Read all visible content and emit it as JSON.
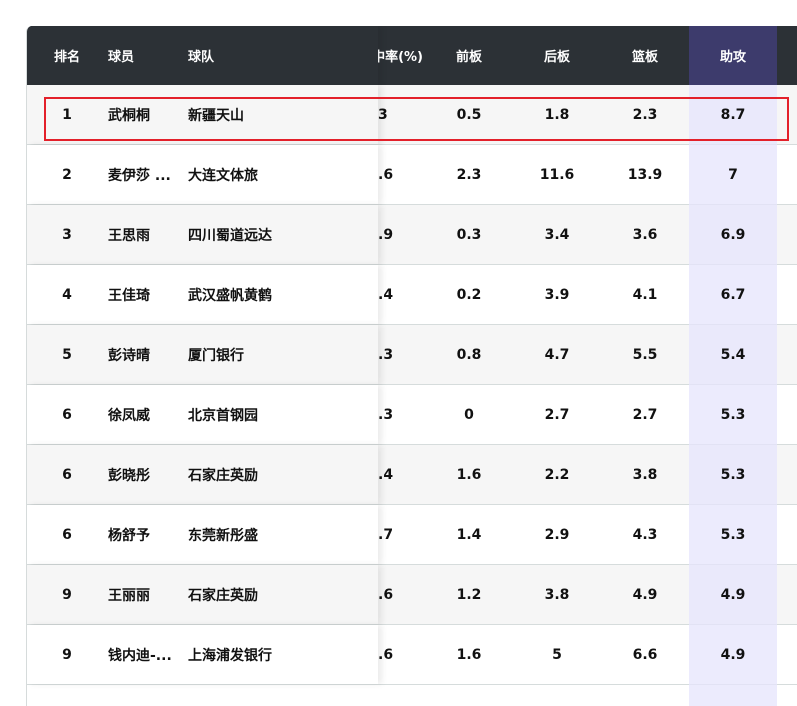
{
  "columns": {
    "rank": "排名",
    "player": "球员",
    "team": "球队",
    "partial": "中率(%)",
    "oreb": "前板",
    "dreb": "后板",
    "reb": "篮板",
    "ast": "助攻"
  },
  "rows": [
    {
      "rank": "1",
      "player": "武桐桐",
      "team": "新疆天山",
      "partial": "3",
      "oreb": "0.5",
      "dreb": "1.8",
      "reb": "2.3",
      "ast": "8.7"
    },
    {
      "rank": "2",
      "player": "麦伊莎 ...",
      "team": "大连文体旅",
      "partial": ".6",
      "oreb": "2.3",
      "dreb": "11.6",
      "reb": "13.9",
      "ast": "7"
    },
    {
      "rank": "3",
      "player": "王思雨",
      "team": "四川蜀道远达",
      "partial": ".9",
      "oreb": "0.3",
      "dreb": "3.4",
      "reb": "3.6",
      "ast": "6.9"
    },
    {
      "rank": "4",
      "player": "王佳琦",
      "team": "武汉盛帆黄鹤",
      "partial": ".4",
      "oreb": "0.2",
      "dreb": "3.9",
      "reb": "4.1",
      "ast": "6.7"
    },
    {
      "rank": "5",
      "player": "彭诗晴",
      "team": "厦门银行",
      "partial": ".3",
      "oreb": "0.8",
      "dreb": "4.7",
      "reb": "5.5",
      "ast": "5.4"
    },
    {
      "rank": "6",
      "player": "徐凤威",
      "team": "北京首钢园",
      "partial": ".3",
      "oreb": "0",
      "dreb": "2.7",
      "reb": "2.7",
      "ast": "5.3"
    },
    {
      "rank": "6",
      "player": "彭晓彤",
      "team": "石家庄英励",
      "partial": ".4",
      "oreb": "1.6",
      "dreb": "2.2",
      "reb": "3.8",
      "ast": "5.3"
    },
    {
      "rank": "6",
      "player": "杨舒予",
      "team": "东莞新彤盛",
      "partial": ".7",
      "oreb": "1.4",
      "dreb": "2.9",
      "reb": "4.3",
      "ast": "5.3"
    },
    {
      "rank": "9",
      "player": "王丽丽",
      "team": "石家庄英励",
      "partial": ".6",
      "oreb": "1.2",
      "dreb": "3.8",
      "reb": "4.9",
      "ast": "4.9"
    },
    {
      "rank": "9",
      "player": "钱内迪-...",
      "team": "上海浦发银行",
      "partial": ".6",
      "oreb": "1.6",
      "dreb": "5",
      "reb": "6.6",
      "ast": "4.9"
    }
  ],
  "colors": {
    "header": "#2c3136",
    "assist_header": "#3d3b6c",
    "assist_column": "#efeefc",
    "highlight": "#e3202a"
  }
}
